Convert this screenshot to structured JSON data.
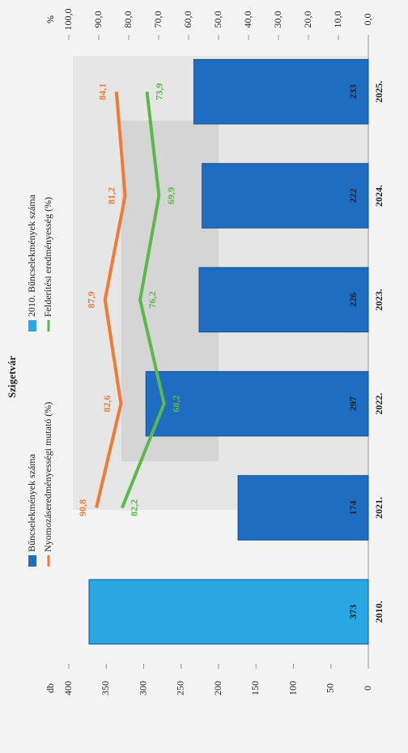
{
  "chart_data": {
    "type": "bar",
    "title": "Szigetvár",
    "categories": [
      "2010.",
      "2021.",
      "2022.",
      "2023.",
      "2024.",
      "2025."
    ],
    "series": [
      {
        "name": "Bűncselekmények száma",
        "color": "#1f6dc0",
        "values": [
          null,
          174,
          297,
          226,
          222,
          233
        ]
      },
      {
        "name": "2010. Bűncselekmények száma",
        "color": "#2aa6e2",
        "values": [
          373,
          null,
          null,
          null,
          null,
          null
        ]
      },
      {
        "name": "Nyomozáseredményességi mutató (%)",
        "type": "line",
        "axis": "y2",
        "color": "#f07b35",
        "values": [
          null,
          90.8,
          82.6,
          87.9,
          81.2,
          84.1
        ],
        "value_labels": [
          null,
          "90,8",
          "82,6",
          "87,9",
          "81,2",
          "84,1"
        ]
      },
      {
        "name": "Felderítési eredményesség (%)",
        "type": "line",
        "axis": "y2",
        "color": "#5cb84a",
        "values": [
          null,
          82.2,
          68.2,
          76.2,
          69.9,
          73.9
        ],
        "value_labels": [
          null,
          "82,2",
          "68,2",
          "76,2",
          "69,9",
          "73,9"
        ]
      }
    ],
    "ylabel": "db",
    "ylim": [
      0,
      400
    ],
    "yticks": [
      0,
      50,
      100,
      150,
      200,
      250,
      300,
      350,
      400
    ],
    "y2label": "%",
    "y2lim": [
      0,
      100
    ],
    "y2ticks": [
      {
        "value": 0,
        "label": "0,0"
      },
      {
        "value": 10,
        "label": "10,0"
      },
      {
        "value": 20,
        "label": "20,0"
      },
      {
        "value": 30,
        "label": "30,0"
      },
      {
        "value": 40,
        "label": "40,0"
      },
      {
        "value": 50,
        "label": "50,0"
      },
      {
        "value": 60,
        "label": "60,0"
      },
      {
        "value": 70,
        "label": "70,0"
      },
      {
        "value": 80,
        "label": "80,0"
      },
      {
        "value": 90,
        "label": "90,0"
      },
      {
        "value": 100,
        "label": "100,0"
      }
    ]
  }
}
